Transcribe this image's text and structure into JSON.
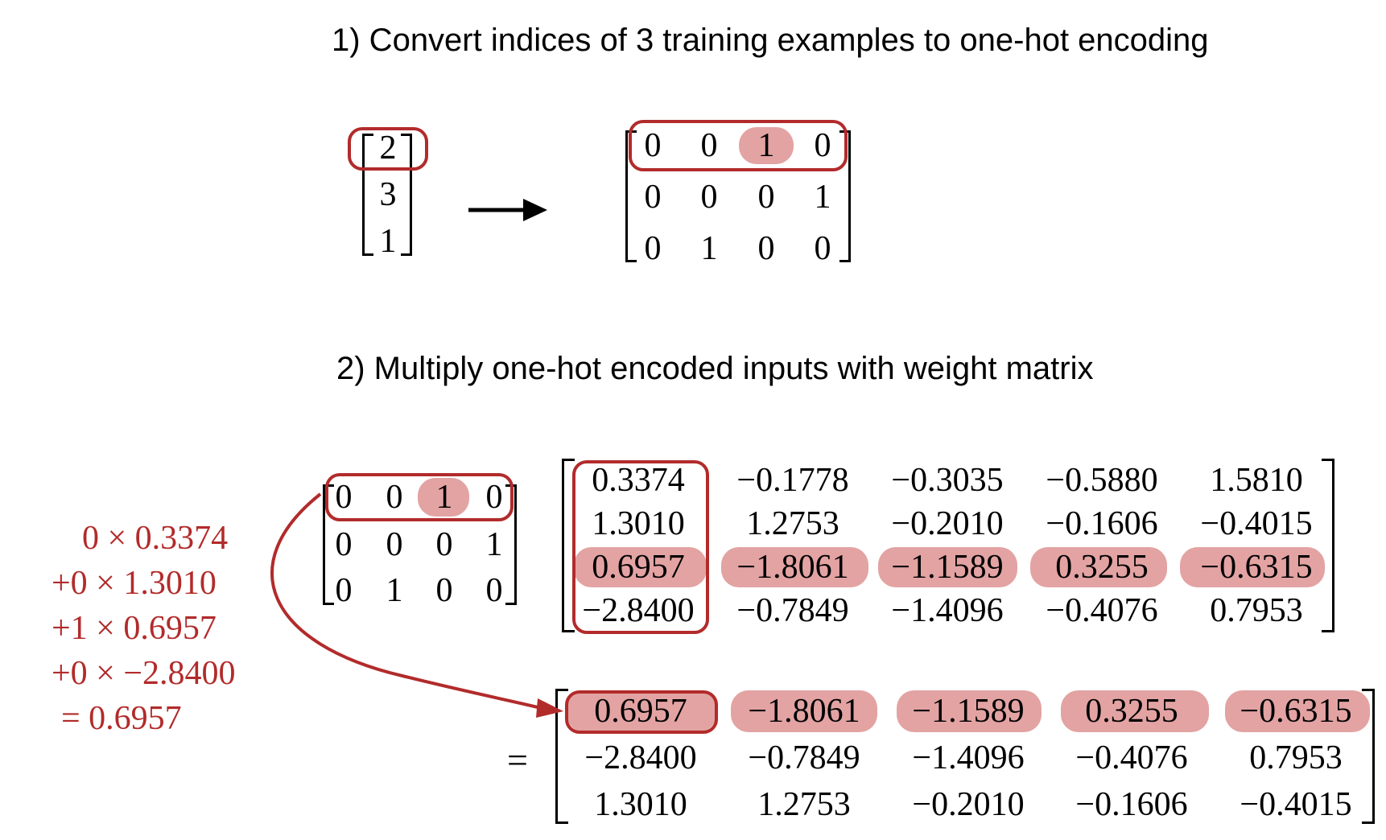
{
  "step1": {
    "title": "1) Convert indices of 3 training examples to one-hot encoding",
    "indices": [
      "2",
      "3",
      "1"
    ],
    "one_hot": [
      [
        "0",
        "0",
        "1",
        "0"
      ],
      [
        "0",
        "0",
        "0",
        "1"
      ],
      [
        "0",
        "1",
        "0",
        "0"
      ]
    ]
  },
  "step2": {
    "title": "2) Multiply one-hot encoded inputs with weight matrix",
    "one_hot": [
      [
        "0",
        "0",
        "1",
        "0"
      ],
      [
        "0",
        "0",
        "0",
        "1"
      ],
      [
        "0",
        "1",
        "0",
        "0"
      ]
    ],
    "weights": [
      [
        "0.3374",
        "−0.1778",
        "−0.3035",
        "−0.5880",
        "1.5810"
      ],
      [
        "1.3010",
        "1.2753",
        "−0.2010",
        "−0.1606",
        "−0.4015"
      ],
      [
        "0.6957",
        "−1.8061",
        "−1.1589",
        "0.3255",
        "−0.6315"
      ],
      [
        "−2.8400",
        "−0.7849",
        "−1.4096",
        "−0.4076",
        "0.7953"
      ]
    ],
    "equals_sign": "=",
    "result": [
      [
        "0.6957",
        "−1.8061",
        "−1.1589",
        "0.3255",
        "−0.6315"
      ],
      [
        "−2.8400",
        "−0.7849",
        "−1.4096",
        "−0.4076",
        "0.7953"
      ],
      [
        "1.3010",
        "1.2753",
        "−0.2010",
        "−0.1606",
        "−0.4015"
      ]
    ],
    "calculation": [
      "0 × 0.3374",
      "+0 × 1.3010",
      "+1 × 0.6957",
      "+0 × −2.8400",
      "= 0.6957"
    ]
  },
  "colors": {
    "highlight_fill": "#e3a3a3",
    "outline_red": "#b22b2b",
    "text": "#000000"
  }
}
